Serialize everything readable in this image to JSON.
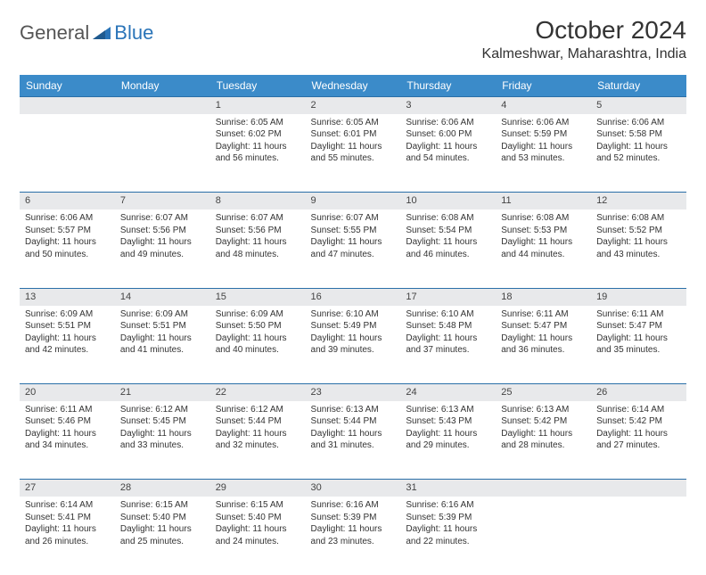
{
  "brand": {
    "part1": "General",
    "part2": "Blue"
  },
  "title": "October 2024",
  "location": "Kalmeshwar, Maharashtra, India",
  "colors": {
    "header_bg": "#3b8bc9",
    "header_text": "#ffffff",
    "daynum_bg": "#e8e9eb",
    "border": "#2a6fa8",
    "text": "#333333",
    "logo_blue": "#2a74b8"
  },
  "day_headers": [
    "Sunday",
    "Monday",
    "Tuesday",
    "Wednesday",
    "Thursday",
    "Friday",
    "Saturday"
  ],
  "weeks": [
    {
      "nums": [
        "",
        "",
        "1",
        "2",
        "3",
        "4",
        "5"
      ],
      "cells": [
        null,
        null,
        {
          "sunrise": "Sunrise: 6:05 AM",
          "sunset": "Sunset: 6:02 PM",
          "day1": "Daylight: 11 hours",
          "day2": "and 56 minutes."
        },
        {
          "sunrise": "Sunrise: 6:05 AM",
          "sunset": "Sunset: 6:01 PM",
          "day1": "Daylight: 11 hours",
          "day2": "and 55 minutes."
        },
        {
          "sunrise": "Sunrise: 6:06 AM",
          "sunset": "Sunset: 6:00 PM",
          "day1": "Daylight: 11 hours",
          "day2": "and 54 minutes."
        },
        {
          "sunrise": "Sunrise: 6:06 AM",
          "sunset": "Sunset: 5:59 PM",
          "day1": "Daylight: 11 hours",
          "day2": "and 53 minutes."
        },
        {
          "sunrise": "Sunrise: 6:06 AM",
          "sunset": "Sunset: 5:58 PM",
          "day1": "Daylight: 11 hours",
          "day2": "and 52 minutes."
        }
      ]
    },
    {
      "nums": [
        "6",
        "7",
        "8",
        "9",
        "10",
        "11",
        "12"
      ],
      "cells": [
        {
          "sunrise": "Sunrise: 6:06 AM",
          "sunset": "Sunset: 5:57 PM",
          "day1": "Daylight: 11 hours",
          "day2": "and 50 minutes."
        },
        {
          "sunrise": "Sunrise: 6:07 AM",
          "sunset": "Sunset: 5:56 PM",
          "day1": "Daylight: 11 hours",
          "day2": "and 49 minutes."
        },
        {
          "sunrise": "Sunrise: 6:07 AM",
          "sunset": "Sunset: 5:56 PM",
          "day1": "Daylight: 11 hours",
          "day2": "and 48 minutes."
        },
        {
          "sunrise": "Sunrise: 6:07 AM",
          "sunset": "Sunset: 5:55 PM",
          "day1": "Daylight: 11 hours",
          "day2": "and 47 minutes."
        },
        {
          "sunrise": "Sunrise: 6:08 AM",
          "sunset": "Sunset: 5:54 PM",
          "day1": "Daylight: 11 hours",
          "day2": "and 46 minutes."
        },
        {
          "sunrise": "Sunrise: 6:08 AM",
          "sunset": "Sunset: 5:53 PM",
          "day1": "Daylight: 11 hours",
          "day2": "and 44 minutes."
        },
        {
          "sunrise": "Sunrise: 6:08 AM",
          "sunset": "Sunset: 5:52 PM",
          "day1": "Daylight: 11 hours",
          "day2": "and 43 minutes."
        }
      ]
    },
    {
      "nums": [
        "13",
        "14",
        "15",
        "16",
        "17",
        "18",
        "19"
      ],
      "cells": [
        {
          "sunrise": "Sunrise: 6:09 AM",
          "sunset": "Sunset: 5:51 PM",
          "day1": "Daylight: 11 hours",
          "day2": "and 42 minutes."
        },
        {
          "sunrise": "Sunrise: 6:09 AM",
          "sunset": "Sunset: 5:51 PM",
          "day1": "Daylight: 11 hours",
          "day2": "and 41 minutes."
        },
        {
          "sunrise": "Sunrise: 6:09 AM",
          "sunset": "Sunset: 5:50 PM",
          "day1": "Daylight: 11 hours",
          "day2": "and 40 minutes."
        },
        {
          "sunrise": "Sunrise: 6:10 AM",
          "sunset": "Sunset: 5:49 PM",
          "day1": "Daylight: 11 hours",
          "day2": "and 39 minutes."
        },
        {
          "sunrise": "Sunrise: 6:10 AM",
          "sunset": "Sunset: 5:48 PM",
          "day1": "Daylight: 11 hours",
          "day2": "and 37 minutes."
        },
        {
          "sunrise": "Sunrise: 6:11 AM",
          "sunset": "Sunset: 5:47 PM",
          "day1": "Daylight: 11 hours",
          "day2": "and 36 minutes."
        },
        {
          "sunrise": "Sunrise: 6:11 AM",
          "sunset": "Sunset: 5:47 PM",
          "day1": "Daylight: 11 hours",
          "day2": "and 35 minutes."
        }
      ]
    },
    {
      "nums": [
        "20",
        "21",
        "22",
        "23",
        "24",
        "25",
        "26"
      ],
      "cells": [
        {
          "sunrise": "Sunrise: 6:11 AM",
          "sunset": "Sunset: 5:46 PM",
          "day1": "Daylight: 11 hours",
          "day2": "and 34 minutes."
        },
        {
          "sunrise": "Sunrise: 6:12 AM",
          "sunset": "Sunset: 5:45 PM",
          "day1": "Daylight: 11 hours",
          "day2": "and 33 minutes."
        },
        {
          "sunrise": "Sunrise: 6:12 AM",
          "sunset": "Sunset: 5:44 PM",
          "day1": "Daylight: 11 hours",
          "day2": "and 32 minutes."
        },
        {
          "sunrise": "Sunrise: 6:13 AM",
          "sunset": "Sunset: 5:44 PM",
          "day1": "Daylight: 11 hours",
          "day2": "and 31 minutes."
        },
        {
          "sunrise": "Sunrise: 6:13 AM",
          "sunset": "Sunset: 5:43 PM",
          "day1": "Daylight: 11 hours",
          "day2": "and 29 minutes."
        },
        {
          "sunrise": "Sunrise: 6:13 AM",
          "sunset": "Sunset: 5:42 PM",
          "day1": "Daylight: 11 hours",
          "day2": "and 28 minutes."
        },
        {
          "sunrise": "Sunrise: 6:14 AM",
          "sunset": "Sunset: 5:42 PM",
          "day1": "Daylight: 11 hours",
          "day2": "and 27 minutes."
        }
      ]
    },
    {
      "nums": [
        "27",
        "28",
        "29",
        "30",
        "31",
        "",
        ""
      ],
      "cells": [
        {
          "sunrise": "Sunrise: 6:14 AM",
          "sunset": "Sunset: 5:41 PM",
          "day1": "Daylight: 11 hours",
          "day2": "and 26 minutes."
        },
        {
          "sunrise": "Sunrise: 6:15 AM",
          "sunset": "Sunset: 5:40 PM",
          "day1": "Daylight: 11 hours",
          "day2": "and 25 minutes."
        },
        {
          "sunrise": "Sunrise: 6:15 AM",
          "sunset": "Sunset: 5:40 PM",
          "day1": "Daylight: 11 hours",
          "day2": "and 24 minutes."
        },
        {
          "sunrise": "Sunrise: 6:16 AM",
          "sunset": "Sunset: 5:39 PM",
          "day1": "Daylight: 11 hours",
          "day2": "and 23 minutes."
        },
        {
          "sunrise": "Sunrise: 6:16 AM",
          "sunset": "Sunset: 5:39 PM",
          "day1": "Daylight: 11 hours",
          "day2": "and 22 minutes."
        },
        null,
        null
      ]
    }
  ]
}
